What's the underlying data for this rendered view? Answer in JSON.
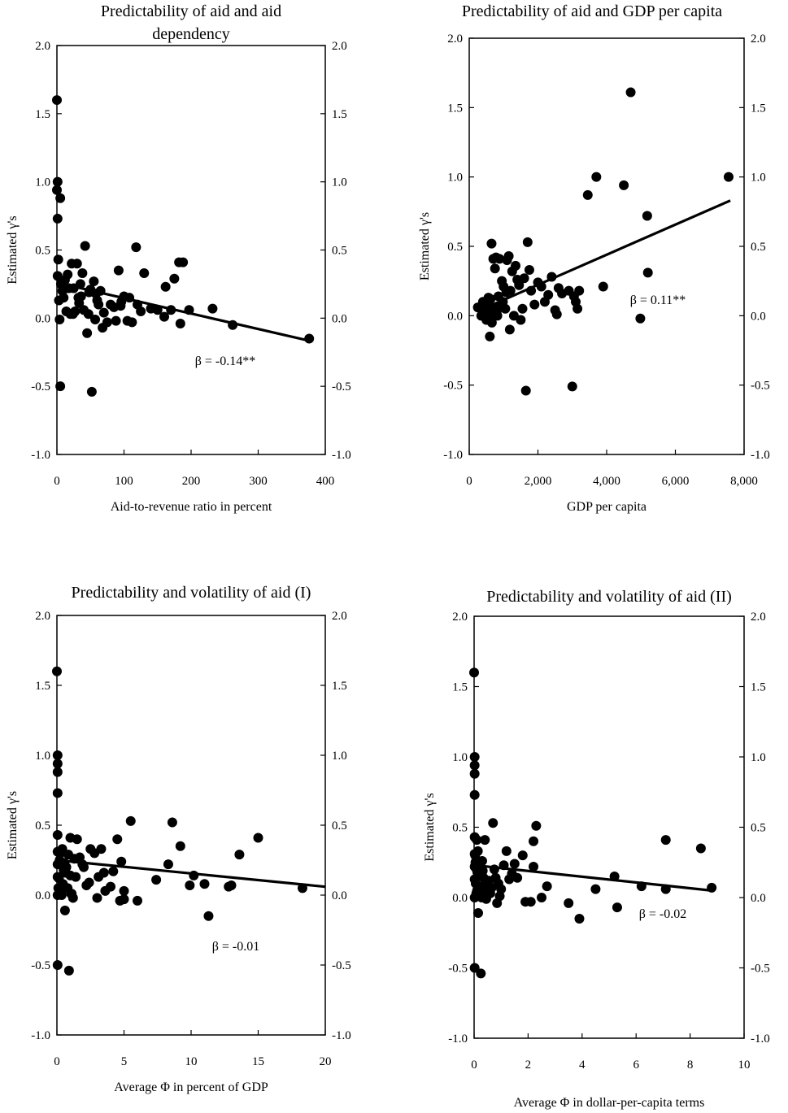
{
  "chart_data": [
    {
      "type": "scatter",
      "title": "Predictability of aid and aid dependency",
      "title_lines": [
        "Predictability of aid and aid",
        "dependency"
      ],
      "xlabel": "Aid-to-revenue ratio in percent",
      "ylabel": "Estimated γ's",
      "xlim": [
        0,
        400
      ],
      "ylim": [
        -1.0,
        2.0
      ],
      "x_ticks": [
        "0",
        "100",
        "200",
        "300",
        "400"
      ],
      "y_ticks": [
        "-1.0",
        "-0.5",
        "0.0",
        "0.5",
        "1.0",
        "1.5",
        "2.0"
      ],
      "grid": false,
      "annotation": "β = -0.14**",
      "trendline": {
        "x": [
          0,
          380
        ],
        "y": [
          0.26,
          -0.17
        ]
      },
      "points": [
        [
          0,
          1.6
        ],
        [
          1,
          1.0
        ],
        [
          0,
          0.94
        ],
        [
          5,
          0.88
        ],
        [
          1,
          0.73
        ],
        [
          2,
          0.43
        ],
        [
          1,
          0.31
        ],
        [
          3,
          0.13
        ],
        [
          5,
          -0.5
        ],
        [
          4,
          -0.01
        ],
        [
          6,
          0.25
        ],
        [
          8,
          0.2
        ],
        [
          10,
          0.15
        ],
        [
          12,
          0.28
        ],
        [
          14,
          0.05
        ],
        [
          16,
          0.32
        ],
        [
          18,
          0.22
        ],
        [
          20,
          0.03
        ],
        [
          22,
          0.4
        ],
        [
          25,
          0.22
        ],
        [
          27,
          0.05
        ],
        [
          30,
          0.4
        ],
        [
          32,
          0.15
        ],
        [
          35,
          0.25
        ],
        [
          38,
          0.33
        ],
        [
          40,
          0.06
        ],
        [
          42,
          0.53
        ],
        [
          45,
          -0.11
        ],
        [
          47,
          0.03
        ],
        [
          50,
          0.21
        ],
        [
          52,
          -0.54
        ],
        [
          55,
          0.27
        ],
        [
          58,
          0.18
        ],
        [
          62,
          0.1
        ],
        [
          65,
          0.2
        ],
        [
          68,
          -0.07
        ],
        [
          70,
          0.04
        ],
        [
          85,
          0.08
        ],
        [
          88,
          -0.02
        ],
        [
          92,
          0.35
        ],
        [
          96,
          0.12
        ],
        [
          100,
          0.16
        ],
        [
          105,
          -0.02
        ],
        [
          108,
          0.15
        ],
        [
          112,
          -0.03
        ],
        [
          118,
          0.52
        ],
        [
          120,
          0.1
        ],
        [
          125,
          0.05
        ],
        [
          130,
          0.33
        ],
        [
          140,
          0.07
        ],
        [
          160,
          0.01
        ],
        [
          162,
          0.23
        ],
        [
          170,
          0.06
        ],
        [
          175,
          0.29
        ],
        [
          182,
          0.41
        ],
        [
          184,
          -0.04
        ],
        [
          188,
          0.41
        ],
        [
          197,
          0.06
        ],
        [
          232,
          0.07
        ],
        [
          262,
          -0.05
        ],
        [
          376,
          -0.15
        ],
        [
          15,
          0.22
        ],
        [
          24,
          0.03
        ],
        [
          33,
          0.11
        ],
        [
          36,
          0.16
        ],
        [
          48,
          0.19
        ],
        [
          57,
          -0.01
        ],
        [
          60,
          0.13
        ],
        [
          75,
          -0.03
        ],
        [
          80,
          0.1
        ],
        [
          95,
          0.09
        ],
        [
          150,
          0.06
        ]
      ]
    },
    {
      "type": "scatter",
      "title": "Predictability of aid and GDP per capita",
      "xlabel": "GDP per capita",
      "ylabel": "Estimated γ's",
      "xlim": [
        0,
        8000
      ],
      "ylim": [
        -1.0,
        2.0
      ],
      "x_ticks": [
        "0",
        "2,000",
        "4,000",
        "6,000",
        "8,000"
      ],
      "y_ticks": [
        "-1.0",
        "-0.5",
        "0.0",
        "0.5",
        "1.0",
        "1.5",
        "2.0"
      ],
      "grid": false,
      "annotation": "β = 0.11**",
      "trendline": {
        "x": [
          500,
          7600
        ],
        "y": [
          0.06,
          0.83
        ]
      },
      "points": [
        [
          250,
          0.06
        ],
        [
          400,
          0.1
        ],
        [
          450,
          0.03
        ],
        [
          500,
          -0.03
        ],
        [
          550,
          0.02
        ],
        [
          600,
          -0.15
        ],
        [
          620,
          0.12
        ],
        [
          650,
          0.52
        ],
        [
          680,
          0.06
        ],
        [
          700,
          0.41
        ],
        [
          720,
          0.0
        ],
        [
          750,
          0.34
        ],
        [
          780,
          0.42
        ],
        [
          800,
          0.03
        ],
        [
          850,
          0.14
        ],
        [
          880,
          0.41
        ],
        [
          900,
          0.07
        ],
        [
          950,
          0.25
        ],
        [
          1000,
          0.21
        ],
        [
          1050,
          0.05
        ],
        [
          1100,
          0.4
        ],
        [
          1150,
          0.43
        ],
        [
          1180,
          -0.1
        ],
        [
          1200,
          0.18
        ],
        [
          1250,
          0.32
        ],
        [
          1300,
          0.0
        ],
        [
          1350,
          0.36
        ],
        [
          1450,
          0.22
        ],
        [
          1500,
          -0.03
        ],
        [
          1600,
          0.27
        ],
        [
          1650,
          -0.54
        ],
        [
          1700,
          0.53
        ],
        [
          1750,
          0.33
        ],
        [
          1800,
          0.18
        ],
        [
          1900,
          0.08
        ],
        [
          2000,
          0.24
        ],
        [
          2100,
          0.21
        ],
        [
          2200,
          0.1
        ],
        [
          2300,
          0.15
        ],
        [
          2400,
          0.28
        ],
        [
          2500,
          0.04
        ],
        [
          2550,
          0.01
        ],
        [
          2600,
          0.2
        ],
        [
          2700,
          0.16
        ],
        [
          2900,
          0.18
        ],
        [
          3000,
          -0.51
        ],
        [
          3050,
          0.14
        ],
        [
          3100,
          0.1
        ],
        [
          3150,
          0.05
        ],
        [
          3200,
          0.18
        ],
        [
          3450,
          0.87
        ],
        [
          3700,
          1.0
        ],
        [
          3900,
          0.21
        ],
        [
          4500,
          0.94
        ],
        [
          4700,
          1.61
        ],
        [
          4980,
          -0.02
        ],
        [
          5180,
          0.72
        ],
        [
          5200,
          0.31
        ],
        [
          7550,
          1.0
        ],
        [
          350,
          0.0
        ],
        [
          480,
          0.08
        ],
        [
          560,
          0.13
        ],
        [
          660,
          -0.05
        ],
        [
          820,
          0.0
        ],
        [
          980,
          0.1
        ],
        [
          1080,
          0.17
        ],
        [
          1400,
          0.26
        ],
        [
          1550,
          0.05
        ]
      ]
    },
    {
      "type": "scatter",
      "title": "Predictability and volatility of aid (I)",
      "xlabel": "Average Φ in percent of GDP",
      "ylabel": "Estimated γ's",
      "xlim": [
        0,
        20
      ],
      "ylim": [
        -1.0,
        2.0
      ],
      "x_ticks": [
        "0",
        "5",
        "10",
        "15",
        "20"
      ],
      "y_ticks": [
        "-1.0",
        "-0.5",
        "0.0",
        "0.5",
        "1.0",
        "1.5",
        "2.0"
      ],
      "grid": false,
      "annotation": "β = -0.01",
      "trendline": {
        "x": [
          0,
          20
        ],
        "y": [
          0.25,
          0.06
        ]
      },
      "points": [
        [
          0,
          1.6
        ],
        [
          0.05,
          1.0
        ],
        [
          0.05,
          0.94
        ],
        [
          0.05,
          0.88
        ],
        [
          0.05,
          0.73
        ],
        [
          0.05,
          0.43
        ],
        [
          0.05,
          0.31
        ],
        [
          0.05,
          0.22
        ],
        [
          0.05,
          0.13
        ],
        [
          0.05,
          -0.5
        ],
        [
          0.05,
          0.0
        ],
        [
          0.2,
          0.25
        ],
        [
          0.3,
          0.03
        ],
        [
          0.4,
          0.33
        ],
        [
          0.5,
          0.18
        ],
        [
          0.6,
          -0.11
        ],
        [
          0.7,
          0.2
        ],
        [
          0.8,
          0.05
        ],
        [
          0.9,
          -0.54
        ],
        [
          1.0,
          0.41
        ],
        [
          1.0,
          0.14
        ],
        [
          1.1,
          0.01
        ],
        [
          1.2,
          -0.02
        ],
        [
          1.3,
          0.26
        ],
        [
          1.5,
          0.4
        ],
        [
          1.7,
          0.27
        ],
        [
          2.0,
          0.2
        ],
        [
          2.2,
          0.07
        ],
        [
          2.5,
          0.33
        ],
        [
          3.0,
          -0.02
        ],
        [
          3.1,
          0.13
        ],
        [
          3.3,
          0.33
        ],
        [
          3.6,
          0.03
        ],
        [
          4.2,
          0.17
        ],
        [
          4.5,
          0.4
        ],
        [
          4.7,
          -0.04
        ],
        [
          4.8,
          0.24
        ],
        [
          5.0,
          -0.03
        ],
        [
          5.0,
          0.03
        ],
        [
          5.5,
          0.53
        ],
        [
          6.0,
          -0.04
        ],
        [
          7.4,
          0.11
        ],
        [
          8.3,
          0.22
        ],
        [
          8.6,
          0.52
        ],
        [
          9.2,
          0.35
        ],
        [
          9.9,
          0.07
        ],
        [
          10.2,
          0.14
        ],
        [
          11.0,
          0.08
        ],
        [
          11.3,
          -0.15
        ],
        [
          12.8,
          0.06
        ],
        [
          13.0,
          0.07
        ],
        [
          13.6,
          0.29
        ],
        [
          15.0,
          0.41
        ],
        [
          18.3,
          0.05
        ],
        [
          0.1,
          0.05
        ],
        [
          0.15,
          0.12
        ],
        [
          0.25,
          0.3
        ],
        [
          0.35,
          0.0
        ],
        [
          0.45,
          0.08
        ],
        [
          0.55,
          0.23
        ],
        [
          0.65,
          0.16
        ],
        [
          0.85,
          0.29
        ],
        [
          1.05,
          0.01
        ],
        [
          1.4,
          0.13
        ],
        [
          1.9,
          0.22
        ],
        [
          2.4,
          0.09
        ],
        [
          2.8,
          0.3
        ],
        [
          3.5,
          0.16
        ],
        [
          4.0,
          0.06
        ]
      ]
    },
    {
      "type": "scatter",
      "title": "Predictability and volatility of aid (II)",
      "xlabel": "Average Φ in dollar-per-capita terms",
      "ylabel": "Estimated γ's",
      "xlim": [
        0,
        10
      ],
      "ylim": [
        -1.0,
        2.0
      ],
      "x_ticks": [
        "0",
        "2",
        "4",
        "6",
        "8",
        "10"
      ],
      "y_ticks": [
        "-1.0",
        "-0.5",
        "0.0",
        "0.5",
        "1.0",
        "1.5",
        "2.0"
      ],
      "grid": false,
      "annotation": "β = -0.02",
      "trendline": {
        "x": [
          0,
          8.8
        ],
        "y": [
          0.23,
          0.05
        ]
      },
      "points": [
        [
          0,
          1.6
        ],
        [
          0.02,
          1.0
        ],
        [
          0.02,
          0.94
        ],
        [
          0.02,
          0.88
        ],
        [
          0.02,
          0.73
        ],
        [
          0.02,
          0.43
        ],
        [
          0.02,
          0.31
        ],
        [
          0.02,
          0.22
        ],
        [
          0.02,
          0.13
        ],
        [
          0.02,
          -0.5
        ],
        [
          0.02,
          0.0
        ],
        [
          0.05,
          0.25
        ],
        [
          0.08,
          0.03
        ],
        [
          0.1,
          0.41
        ],
        [
          0.12,
          0.18
        ],
        [
          0.15,
          -0.11
        ],
        [
          0.18,
          0.2
        ],
        [
          0.2,
          0.05
        ],
        [
          0.25,
          -0.54
        ],
        [
          0.3,
          0.26
        ],
        [
          0.35,
          0.14
        ],
        [
          0.4,
          0.41
        ],
        [
          0.45,
          -0.01
        ],
        [
          0.5,
          0.05
        ],
        [
          0.6,
          0.03
        ],
        [
          0.7,
          0.53
        ],
        [
          0.8,
          0.14
        ],
        [
          0.85,
          -0.04
        ],
        [
          0.9,
          0.1
        ],
        [
          1.0,
          0.06
        ],
        [
          1.1,
          0.23
        ],
        [
          1.2,
          0.33
        ],
        [
          1.3,
          0.13
        ],
        [
          1.5,
          0.24
        ],
        [
          1.6,
          0.14
        ],
        [
          1.8,
          0.3
        ],
        [
          1.9,
          -0.03
        ],
        [
          2.1,
          -0.03
        ],
        [
          2.2,
          0.4
        ],
        [
          2.2,
          0.22
        ],
        [
          2.3,
          0.51
        ],
        [
          2.5,
          0.0
        ],
        [
          2.7,
          0.08
        ],
        [
          3.5,
          -0.04
        ],
        [
          3.9,
          -0.15
        ],
        [
          4.5,
          0.06
        ],
        [
          5.2,
          0.15
        ],
        [
          5.3,
          -0.07
        ],
        [
          6.2,
          0.08
        ],
        [
          7.1,
          0.41
        ],
        [
          7.1,
          0.06
        ],
        [
          8.4,
          0.35
        ],
        [
          8.8,
          0.07
        ],
        [
          0.04,
          0.3
        ],
        [
          0.06,
          0.1
        ],
        [
          0.09,
          0.2
        ],
        [
          0.11,
          0.05
        ],
        [
          0.14,
          0.33
        ],
        [
          0.16,
          0.23
        ],
        [
          0.22,
          0.17
        ],
        [
          0.28,
          0.0
        ],
        [
          0.32,
          0.19
        ],
        [
          0.38,
          0.09
        ],
        [
          0.55,
          0.12
        ],
        [
          0.65,
          0.07
        ],
        [
          0.75,
          0.2
        ],
        [
          0.95,
          0.01
        ],
        [
          1.4,
          0.17
        ]
      ]
    }
  ]
}
